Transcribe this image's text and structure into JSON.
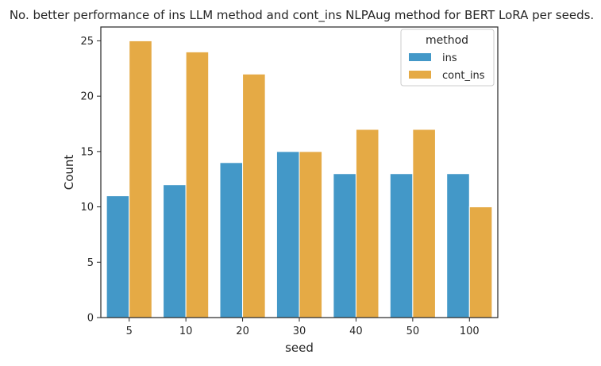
{
  "chart_data": {
    "type": "bar",
    "title": "No. better performance of ins LLM method and cont_ins NLPAug method for BERT LoRA per seeds.",
    "xlabel": "seed",
    "ylabel": "Count",
    "categories": [
      "5",
      "10",
      "20",
      "30",
      "40",
      "50",
      "100"
    ],
    "series": [
      {
        "name": "ins",
        "values": [
          11,
          12,
          14,
          15,
          13,
          13,
          13
        ],
        "color": "#4398c8"
      },
      {
        "name": "cont_ins",
        "values": [
          25,
          24,
          22,
          15,
          17,
          17,
          10
        ],
        "color": "#e5aa45"
      }
    ],
    "ylim": [
      0,
      26.25
    ],
    "yticks": [
      0,
      5,
      10,
      15,
      20,
      25
    ],
    "grid": false,
    "legend": {
      "title": "method",
      "placement": "top-right"
    }
  }
}
